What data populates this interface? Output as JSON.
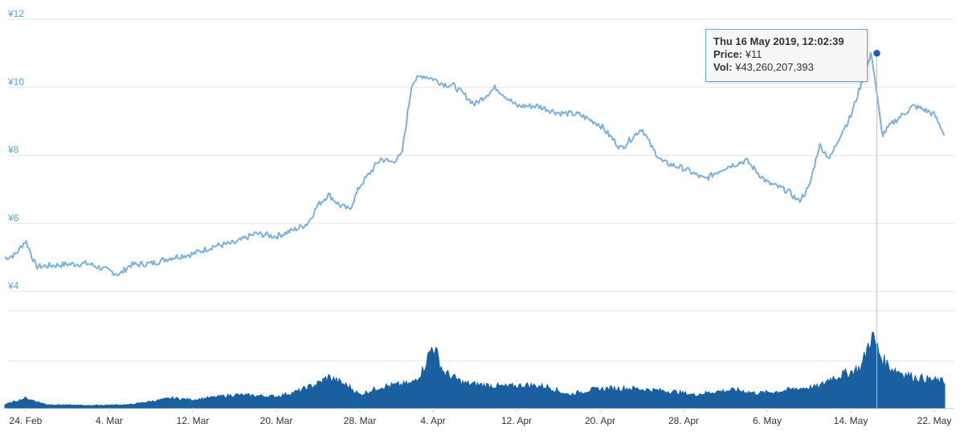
{
  "chart_data": [
    {
      "type": "line",
      "title": "",
      "xlabel": "",
      "ylabel": "",
      "ylim": [
        4,
        12
      ],
      "y_ticks": [
        "¥4",
        "¥6",
        "¥8",
        "¥10",
        "¥12"
      ],
      "grid": true,
      "legend": "none",
      "color": "#7cb0e0",
      "series": [
        {
          "x": [
            "2019-02-22",
            "2019-02-23",
            "2019-02-24",
            "2019-02-25",
            "2019-02-26",
            "2019-02-28",
            "2019-03-02",
            "2019-03-04",
            "2019-03-05",
            "2019-03-06",
            "2019-03-08",
            "2019-03-10",
            "2019-03-12",
            "2019-03-14",
            "2019-03-16",
            "2019-03-18",
            "2019-03-20",
            "2019-03-22",
            "2019-03-23",
            "2019-03-24",
            "2019-03-25",
            "2019-03-26",
            "2019-03-27",
            "2019-03-28",
            "2019-03-29",
            "2019-03-30",
            "2019-03-31",
            "2019-04-01",
            "2019-04-02",
            "2019-04-03",
            "2019-04-04",
            "2019-04-05",
            "2019-04-06",
            "2019-04-08",
            "2019-04-10",
            "2019-04-12",
            "2019-04-14",
            "2019-04-16",
            "2019-04-18",
            "2019-04-20",
            "2019-04-22",
            "2019-04-24",
            "2019-04-25",
            "2019-04-26",
            "2019-04-28",
            "2019-04-30",
            "2019-05-02",
            "2019-05-04",
            "2019-05-06",
            "2019-05-08",
            "2019-05-09",
            "2019-05-10",
            "2019-05-11",
            "2019-05-12",
            "2019-05-13",
            "2019-05-14",
            "2019-05-15",
            "2019-05-16",
            "2019-05-17",
            "2019-05-18",
            "2019-05-20",
            "2019-05-21",
            "2019-05-22",
            "2019-05-23"
          ],
          "y": [
            4.98,
            5.08,
            5.5,
            4.73,
            4.75,
            4.8,
            4.82,
            4.6,
            4.5,
            4.78,
            4.82,
            5.0,
            5.1,
            5.33,
            5.42,
            5.7,
            5.62,
            5.85,
            6.0,
            6.55,
            6.85,
            6.55,
            6.4,
            7.1,
            7.5,
            7.9,
            7.8,
            8.0,
            10.15,
            10.35,
            10.25,
            10.1,
            10.05,
            9.5,
            10.0,
            9.45,
            9.45,
            9.25,
            9.2,
            8.9,
            8.2,
            8.8,
            8.2,
            7.8,
            7.62,
            7.3,
            7.65,
            7.85,
            7.2,
            6.95,
            6.65,
            7.05,
            8.3,
            7.9,
            8.6,
            9.15,
            10.1,
            11.0,
            8.6,
            8.95,
            9.45,
            9.35,
            9.2,
            8.6
          ]
        }
      ]
    },
    {
      "type": "area",
      "title": "",
      "color": "#1a60a0",
      "series": [
        {
          "x": [
            "2019-02-22",
            "2019-02-24",
            "2019-02-26",
            "2019-03-02",
            "2019-03-06",
            "2019-03-10",
            "2019-03-12",
            "2019-03-16",
            "2019-03-20",
            "2019-03-22",
            "2019-03-24",
            "2019-03-25",
            "2019-03-27",
            "2019-03-28",
            "2019-03-30",
            "2019-04-02",
            "2019-04-03",
            "2019-04-04",
            "2019-04-05",
            "2019-04-07",
            "2019-04-09",
            "2019-04-11",
            "2019-04-13",
            "2019-04-15",
            "2019-04-17",
            "2019-04-19",
            "2019-04-21",
            "2019-04-23",
            "2019-04-25",
            "2019-04-27",
            "2019-04-29",
            "2019-05-01",
            "2019-05-03",
            "2019-05-05",
            "2019-05-07",
            "2019-05-09",
            "2019-05-11",
            "2019-05-12",
            "2019-05-13",
            "2019-05-14",
            "2019-05-15",
            "2019-05-16",
            "2019-05-17",
            "2019-05-18",
            "2019-05-20",
            "2019-05-22",
            "2019-05-23"
          ],
          "y": [
            2,
            6,
            2,
            1.5,
            2,
            6,
            5,
            8,
            7,
            10,
            15,
            19,
            13,
            8,
            13,
            15,
            23,
            39,
            22,
            15,
            14,
            13,
            14,
            13,
            8,
            11,
            12,
            12,
            11,
            10,
            8,
            10,
            11,
            9,
            10,
            12,
            13,
            18,
            20,
            22,
            25,
            45,
            30,
            24,
            19,
            17,
            16
          ]
        }
      ]
    }
  ],
  "x_ticks": [
    "24. Feb",
    "4. Mar",
    "12. Mar",
    "20. Mar",
    "28. Mar",
    "4. Apr",
    "12. Apr",
    "20. Apr",
    "28. Apr",
    "6. May",
    "14. May",
    "22. May"
  ],
  "tooltip": {
    "date": "Thu 16 May 2019, 12:02:39",
    "price_label": "Price:",
    "price_value": "¥11",
    "vol_label": "Vol:",
    "vol_value": "¥43,260,207,393"
  }
}
